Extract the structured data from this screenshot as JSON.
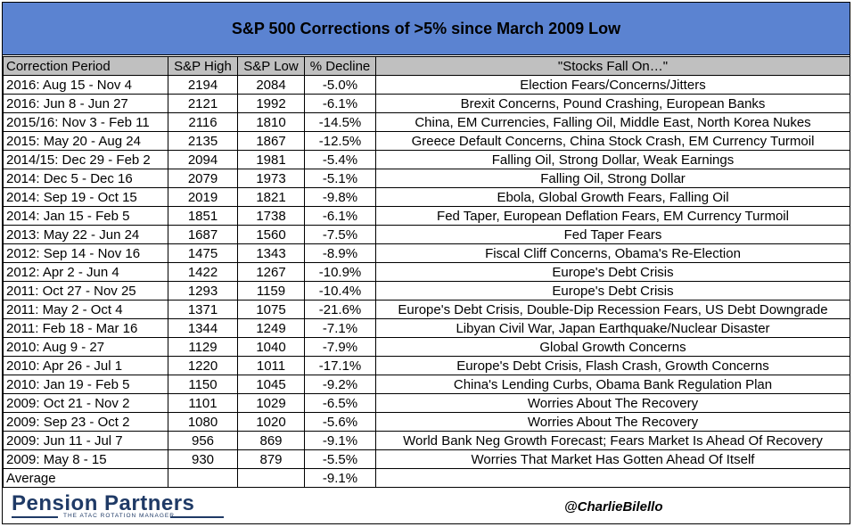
{
  "title": "S&P 500 Corrections of >5% since March 2009 Low",
  "table": {
    "headers": [
      "Correction Period",
      "S&P High",
      "S&P Low",
      "% Decline",
      "\"Stocks Fall On…\""
    ],
    "rows": [
      [
        "2016: Aug 15 - Nov 4",
        "2194",
        "2084",
        "-5.0%",
        "Election Fears/Concerns/Jitters"
      ],
      [
        "2016: Jun 8 - Jun 27",
        "2121",
        "1992",
        "-6.1%",
        "Brexit Concerns, Pound Crashing, European Banks"
      ],
      [
        "2015/16: Nov 3 - Feb 11",
        "2116",
        "1810",
        "-14.5%",
        "China, EM Currencies, Falling Oil, Middle East, North Korea Nukes"
      ],
      [
        "2015: May 20 - Aug 24",
        "2135",
        "1867",
        "-12.5%",
        "Greece Default Concerns, China Stock Crash, EM Currency Turmoil"
      ],
      [
        "2014/15: Dec 29 - Feb 2",
        "2094",
        "1981",
        "-5.4%",
        "Falling Oil, Strong Dollar, Weak Earnings"
      ],
      [
        "2014: Dec 5 - Dec 16",
        "2079",
        "1973",
        "-5.1%",
        "Falling Oil, Strong Dollar"
      ],
      [
        "2014: Sep 19 - Oct 15",
        "2019",
        "1821",
        "-9.8%",
        "Ebola, Global Growth Fears, Falling Oil"
      ],
      [
        "2014: Jan 15 - Feb 5",
        "1851",
        "1738",
        "-6.1%",
        "Fed Taper, European Deflation Fears, EM Currency Turmoil"
      ],
      [
        "2013: May 22 - Jun 24",
        "1687",
        "1560",
        "-7.5%",
        "Fed Taper Fears"
      ],
      [
        "2012: Sep 14 - Nov 16",
        "1475",
        "1343",
        "-8.9%",
        "Fiscal Cliff Concerns, Obama's Re-Election"
      ],
      [
        "2012: Apr 2 - Jun 4",
        "1422",
        "1267",
        "-10.9%",
        "Europe's Debt Crisis"
      ],
      [
        "2011: Oct 27 - Nov 25",
        "1293",
        "1159",
        "-10.4%",
        "Europe's Debt Crisis"
      ],
      [
        "2011: May 2 - Oct 4",
        "1371",
        "1075",
        "-21.6%",
        "Europe's Debt Crisis, Double-Dip Recession Fears, US Debt Downgrade"
      ],
      [
        "2011: Feb 18 - Mar 16",
        "1344",
        "1249",
        "-7.1%",
        "Libyan Civil War, Japan Earthquake/Nuclear Disaster"
      ],
      [
        "2010: Aug 9 - 27",
        "1129",
        "1040",
        "-7.9%",
        "Global Growth Concerns"
      ],
      [
        "2010: Apr 26 - Jul 1",
        "1220",
        "1011",
        "-17.1%",
        "Europe's Debt Crisis, Flash Crash, Growth Concerns"
      ],
      [
        "2010: Jan 19 - Feb 5",
        "1150",
        "1045",
        "-9.2%",
        "China's Lending Curbs, Obama Bank Regulation Plan"
      ],
      [
        "2009: Oct 21 - Nov 2",
        "1101",
        "1029",
        "-6.5%",
        "Worries About The Recovery"
      ],
      [
        "2009: Sep 23 - Oct 2",
        "1080",
        "1020",
        "-5.6%",
        "Worries About The Recovery"
      ],
      [
        "2009: Jun 11 - Jul 7",
        "956",
        "869",
        "-9.1%",
        "World Bank Neg Growth Forecast; Fears Market Is Ahead Of Recovery"
      ],
      [
        "2009: May 8 - 15",
        "930",
        "879",
        "-5.5%",
        "Worries That Market Has Gotten Ahead Of Itself"
      ]
    ],
    "average": [
      "Average",
      "",
      "",
      "-9.1%",
      ""
    ]
  },
  "footer": {
    "logo_text": "Pension Partners",
    "logo_sub": "THE ATAC ROTATION MANAGER",
    "handle": "@CharlieBilello"
  },
  "colors": {
    "title_bg": "#5b83d1",
    "header_bg": "#c0c0c0",
    "logo": "#1f3a66"
  }
}
